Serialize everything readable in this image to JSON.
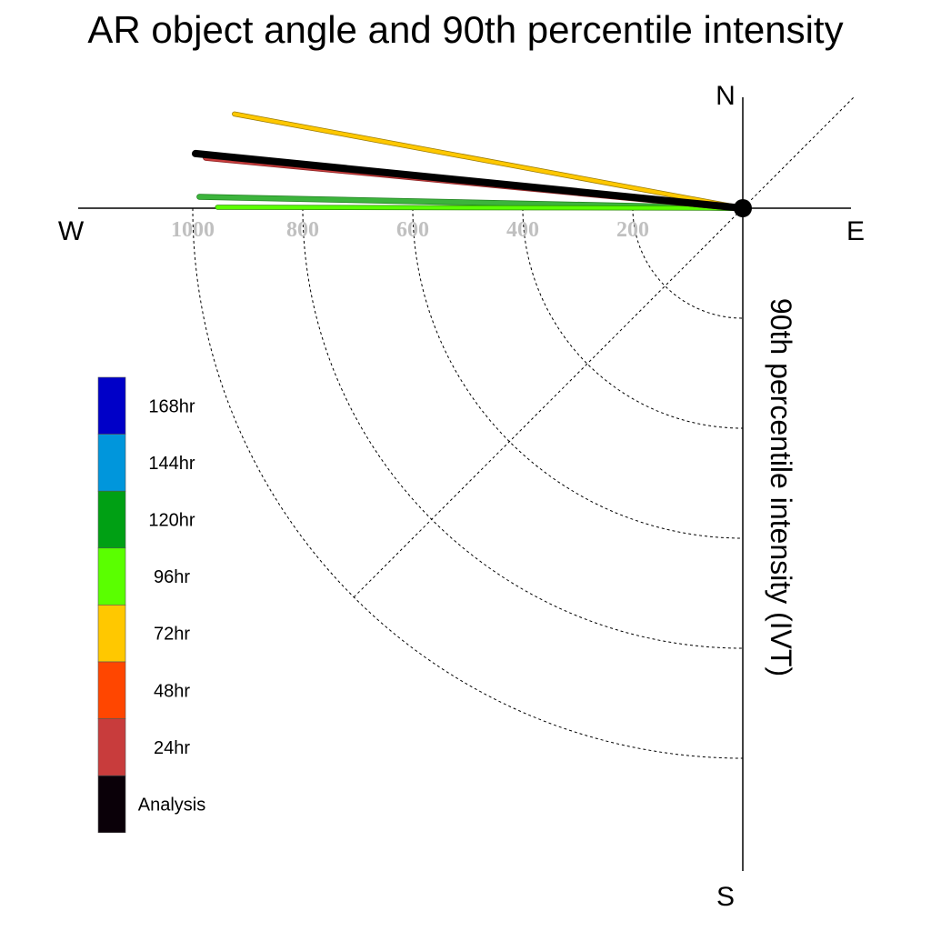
{
  "chart_data": {
    "type": "polar-vector",
    "title": "AR object angle and 90th percentile intensity",
    "ylabel": "90th percentile intensity (IVT)",
    "directions": {
      "north": "N",
      "south": "S",
      "east": "E",
      "west": "W"
    },
    "radial_ticks": [
      "1000",
      "800",
      "600",
      "400",
      "200"
    ],
    "radial_tick_values": [
      1000,
      800,
      600,
      400,
      200
    ],
    "rlim": [
      0,
      1200
    ],
    "legend": [
      {
        "label": "168hr",
        "color": "#0000c8"
      },
      {
        "label": "144hr",
        "color": "#0096dc"
      },
      {
        "label": "120hr",
        "color": "#00a014"
      },
      {
        "label": "96hr",
        "color": "#5aff00"
      },
      {
        "label": "72hr",
        "color": "#ffc800"
      },
      {
        "label": "48hr",
        "color": "#ff4600"
      },
      {
        "label": "24hr",
        "color": "#c83c3c"
      },
      {
        "label": "Analysis",
        "color": "#0a0008"
      }
    ],
    "vectors": [
      {
        "label": "72hr",
        "color": "#ffc800",
        "outline": "#9a7a00",
        "magnitude": 940,
        "angle_deg": 169.5,
        "width": 4
      },
      {
        "label": "120hr",
        "color": "#3cb43c",
        "outline": "#208020",
        "magnitude": 988,
        "angle_deg": 178.8,
        "width": 5
      },
      {
        "label": "96hr",
        "color": "#5aff00",
        "outline": "#2a8a00",
        "magnitude": 955,
        "angle_deg": 179.9,
        "width": 4
      },
      {
        "label": "24hr",
        "color": "#c83c3c",
        "outline": "#8a2020",
        "magnitude": 980,
        "angle_deg": 174.6,
        "width": 6
      },
      {
        "label": "Analysis",
        "color": "#000000",
        "outline": "#000000",
        "magnitude": 1000,
        "angle_deg": 174.3,
        "width": 8
      }
    ]
  }
}
